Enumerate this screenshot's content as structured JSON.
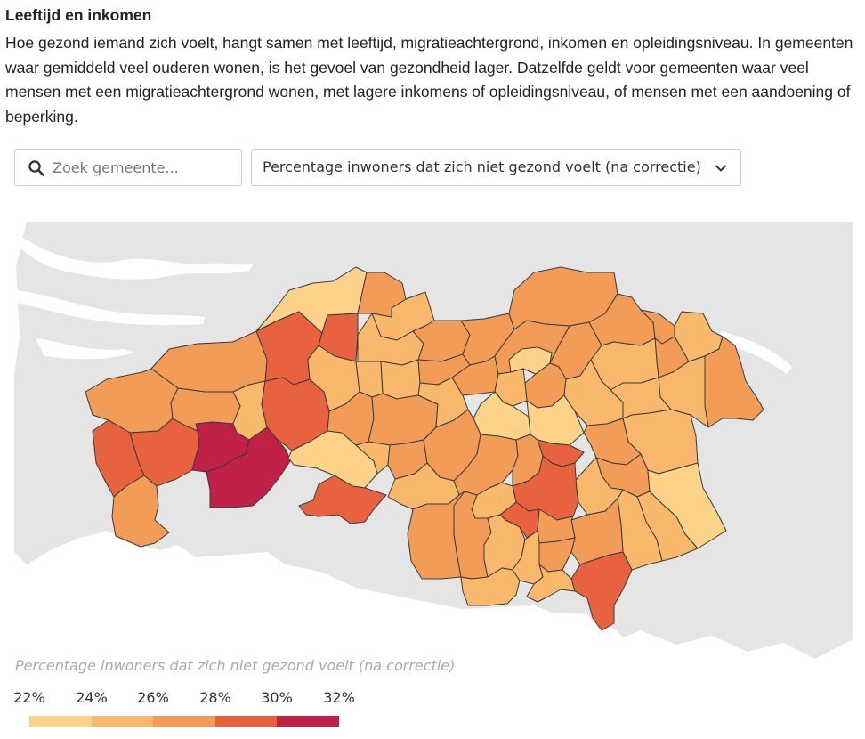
{
  "header": {
    "title": "Leeftijd en inkomen",
    "intro": "Hoe gezond iemand zich voelt, hangt samen met leeftijd, migratieachtergrond, inkomen en opleidingsniveau. In gemeenten waar gemiddeld veel ouderen wonen, is het gevoel van gezondheid lager. Datzelfde geldt voor gemeenten waar veel mensen met een migratieachtergrond wonen, met lagere inkomens of opleidingsniveau, of mensen met een aandoening of beperking."
  },
  "search": {
    "placeholder": "Zoek gemeente...",
    "icon": "search-icon"
  },
  "indicator_select": {
    "selected": "Percentage inwoners dat zich niet gezond voelt (na correctie)",
    "icon": "chevron-down-icon"
  },
  "legend": {
    "title": "Percentage inwoners dat zich niet gezond voelt (na correctie)",
    "ticks": [
      "22%",
      "24%",
      "26%",
      "28%",
      "30%",
      "32%"
    ],
    "colors": [
      "#fdd38a",
      "#f9b86b",
      "#f29c58",
      "#e8623f",
      "#bf2147"
    ]
  },
  "map_colors": {
    "background_land": "#e5e5e5",
    "border": "#3a3a3a"
  }
}
